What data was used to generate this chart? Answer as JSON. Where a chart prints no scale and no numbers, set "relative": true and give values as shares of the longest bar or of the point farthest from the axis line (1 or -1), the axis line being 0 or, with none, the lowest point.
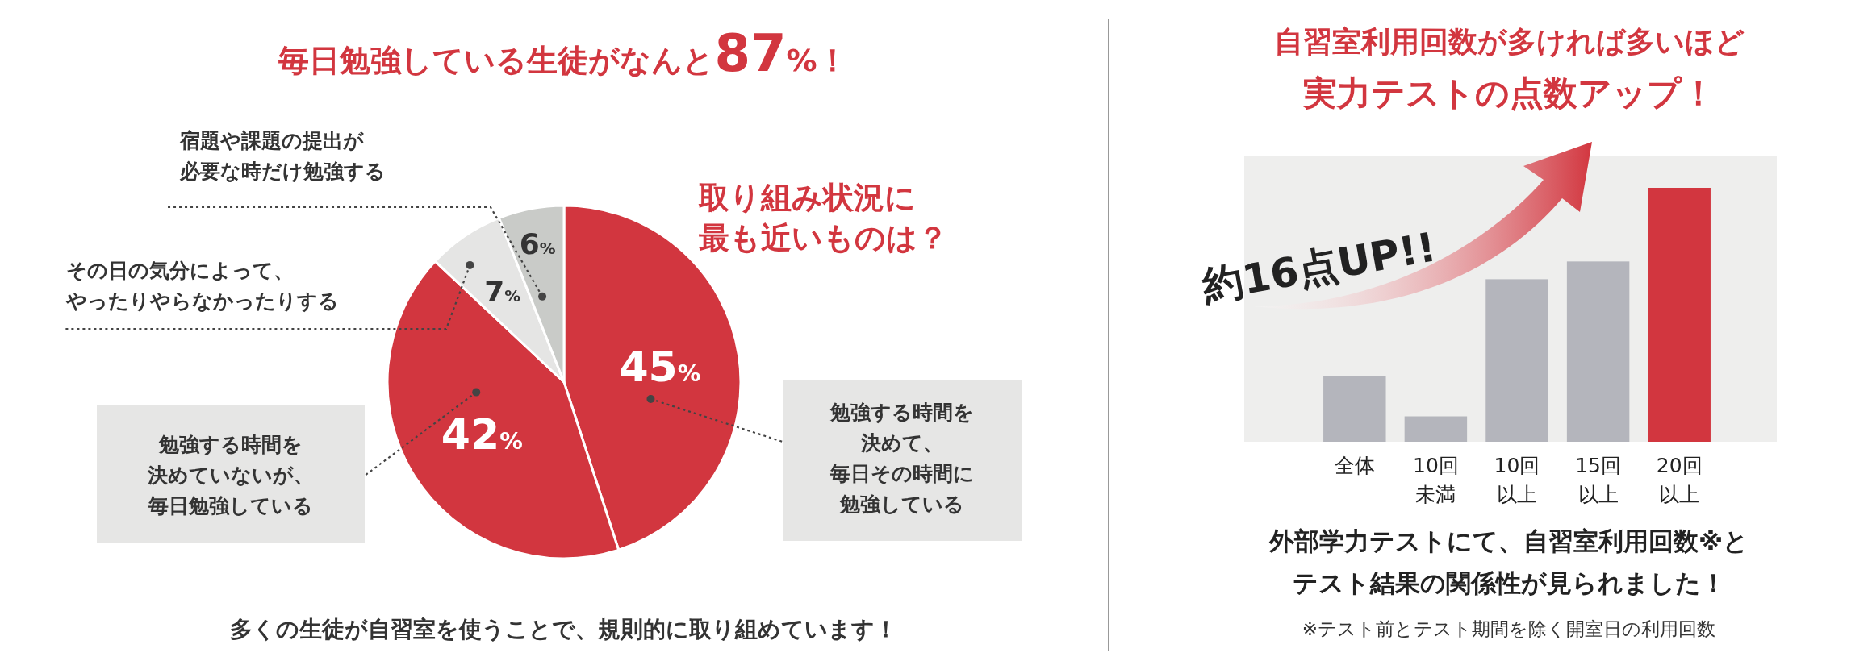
{
  "chart_data": [
    {
      "type": "pie",
      "title": "毎日勉強している生徒がなんと87%！",
      "categories": [
        "勉強する時間を決めて、毎日その時間に勉強している",
        "勉強する時間を決めていないが、毎日勉強している",
        "その日の気分によって、やったりやらなかったりする",
        "宿題や課題の提出が必要な時だけ勉強する"
      ],
      "values": [
        45,
        42,
        7,
        6
      ],
      "colors": [
        "#d2363f",
        "#d2363f",
        "#e5e5e4",
        "#c9cbc8"
      ],
      "value_labels": [
        "45%",
        "42%",
        "7%",
        "6%"
      ],
      "annotations": [
        "取り組み状況に最も近いものは？",
        "多くの生徒が自習室を使うことで、規則的に取り組めています！"
      ]
    },
    {
      "type": "bar",
      "title": "自習室利用回数が多ければ多いほど実力テストの点数アップ！",
      "categories": [
        "全体",
        "10回未満",
        "10回以上",
        "15回以上",
        "20回以上"
      ],
      "values": [
        0.26,
        0.1,
        0.64,
        0.71,
        1
      ],
      "colors": [
        "#b4b5bc",
        "#b4b5bc",
        "#b4b5bc",
        "#b4b5bc",
        "#d2363f"
      ],
      "relative": true,
      "annotations": [
        "約16点UP!!",
        "外部学力テストにて、自習室利用回数※とテスト結果の関係性が見られました！",
        "※テスト前とテスト期間を除く開室日の利用回数"
      ]
    }
  ]
}
